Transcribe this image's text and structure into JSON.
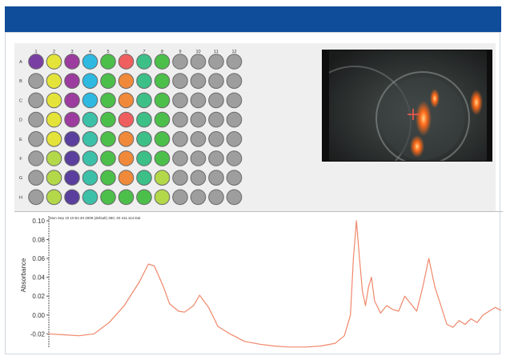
{
  "plate": {
    "column_labels": [
      "1",
      "2",
      "3",
      "4",
      "5",
      "6",
      "7",
      "8",
      "9",
      "10",
      "11",
      "12"
    ],
    "row_labels": [
      "A",
      "B",
      "C",
      "D",
      "E",
      "F",
      "G",
      "H"
    ],
    "palette": {
      "P": "#7a3fa3",
      "Y": "#e3e33a",
      "M": "#9b3c9e",
      "C": "#2fb9e0",
      "T": "#3cc0a8",
      "G": "#4cbf4a",
      "O": "#f08a3a",
      "R": "#ef5f5f",
      "L": "#b3d84a",
      "N": "#9e9e9e",
      "S": "#3dbf88",
      "B": "#5a3f9e"
    },
    "wells": [
      [
        "P",
        "Y",
        "M",
        "C",
        "G",
        "R",
        "S",
        "G",
        "N",
        "N",
        "N",
        "N"
      ],
      [
        "N",
        "Y",
        "M",
        "C",
        "G",
        "O",
        "S",
        "G",
        "N",
        "N",
        "N",
        "N"
      ],
      [
        "N",
        "Y",
        "M",
        "C",
        "G",
        "O",
        "S",
        "G",
        "N",
        "N",
        "N",
        "N"
      ],
      [
        "N",
        "Y",
        "M",
        "T",
        "G",
        "R",
        "S",
        "G",
        "N",
        "N",
        "N",
        "N"
      ],
      [
        "N",
        "Y",
        "B",
        "T",
        "G",
        "O",
        "S",
        "G",
        "N",
        "N",
        "N",
        "N"
      ],
      [
        "N",
        "L",
        "B",
        "T",
        "G",
        "O",
        "S",
        "G",
        "N",
        "N",
        "N",
        "N"
      ],
      [
        "N",
        "L",
        "B",
        "T",
        "G",
        "O",
        "S",
        "L",
        "N",
        "N",
        "N",
        "N"
      ],
      [
        "N",
        "L",
        "B",
        "T",
        "G",
        "G",
        "G",
        "L",
        "N",
        "N",
        "N",
        "N"
      ]
    ]
  },
  "camera": {
    "icon": "crosshair-icon"
  },
  "chart_data": {
    "type": "line",
    "title": "Mon Sep 10 10:51:40 2009 (default) 350, 40 411.114.Dat",
    "ylabel": "Absorbance",
    "xlabel": "",
    "ylim": [
      -0.035,
      0.105
    ],
    "yticks": [
      "0.10",
      "0.08",
      "0.06",
      "0.04",
      "0.02",
      "0.00",
      "-0.02"
    ],
    "ytick_values": [
      0.1,
      0.08,
      0.06,
      0.04,
      0.02,
      0.0,
      -0.02
    ],
    "grid": false,
    "series": [
      {
        "color": "#f0876a",
        "x": [
          0,
          5,
          10,
          15,
          20,
          25,
          30,
          33,
          35,
          38,
          40,
          43,
          45,
          48,
          50,
          53,
          55,
          56,
          58,
          60,
          62,
          63,
          65,
          70,
          75,
          80,
          85,
          90,
          95,
          98,
          100,
          101,
          102,
          103,
          104,
          105,
          106,
          107,
          108,
          110,
          112,
          114,
          116,
          118,
          120,
          122,
          124,
          126,
          128,
          130,
          132,
          134,
          136,
          138,
          140,
          142,
          144,
          146,
          148,
          150
        ],
        "y": [
          -0.02,
          -0.021,
          -0.022,
          -0.02,
          -0.008,
          0.01,
          0.035,
          0.054,
          0.052,
          0.03,
          0.012,
          0.004,
          0.003,
          0.01,
          0.021,
          0.008,
          -0.005,
          -0.012,
          -0.016,
          -0.02,
          -0.023,
          -0.025,
          -0.028,
          -0.031,
          -0.033,
          -0.034,
          -0.034,
          -0.033,
          -0.03,
          -0.022,
          0.0,
          0.06,
          0.1,
          0.06,
          0.025,
          0.01,
          0.03,
          0.04,
          0.015,
          0.002,
          0.01,
          0.006,
          0.004,
          0.02,
          0.012,
          0.004,
          0.03,
          0.06,
          0.03,
          0.01,
          -0.01,
          -0.013,
          -0.006,
          -0.01,
          -0.004,
          -0.008,
          0.0,
          0.004,
          0.008,
          0.005
        ]
      }
    ]
  }
}
